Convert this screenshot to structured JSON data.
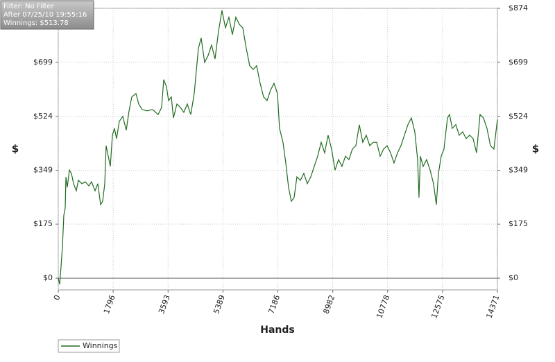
{
  "chart_data": {
    "type": "line",
    "annotations": [
      "Filter: No Filter",
      "After 07/25/10 19:55:16",
      "Winnings: $513.78"
    ],
    "xlabel": "Hands",
    "ylabel": "$",
    "x": [
      0,
      45,
      90,
      136,
      182,
      227,
      250,
      295,
      363,
      431,
      500,
      590,
      658,
      772,
      885,
      999,
      1090,
      1203,
      1294,
      1385,
      1453,
      1521,
      1566,
      1635,
      1703,
      1771,
      1839,
      1907,
      1998,
      2111,
      2225,
      2315,
      2406,
      2542,
      2633,
      2747,
      2906,
      3087,
      3269,
      3382,
      3450,
      3541,
      3609,
      3700,
      3768,
      3882,
      3995,
      4109,
      4222,
      4336,
      4449,
      4585,
      4676,
      4790,
      4903,
      5017,
      5130,
      5244,
      5357,
      5471,
      5584,
      5698,
      5811,
      5925,
      6038,
      6152,
      6265,
      6379,
      6492,
      6606,
      6719,
      6833,
      6946,
      7060,
      7173,
      7241,
      7354,
      7445,
      7536,
      7627,
      7718,
      7809,
      7922,
      8036,
      8149,
      8263,
      8376,
      8490,
      8603,
      8717,
      8830,
      8944,
      9057,
      9171,
      9284,
      9398,
      9511,
      9625,
      9738,
      9852,
      9965,
      10079,
      10192,
      10306,
      10420,
      10533,
      10647,
      10760,
      10874,
      10987,
      11101,
      11214,
      11328,
      11441,
      11555,
      11668,
      11759,
      11804,
      11850,
      11941,
      12054,
      12168,
      12281,
      12372,
      12440,
      12531,
      12622,
      12736,
      12804,
      12894,
      13008,
      13121,
      13235,
      13348,
      13462,
      13575,
      13689,
      13802,
      13916,
      14029,
      14143,
      14256,
      14371
    ],
    "series": [
      {
        "name": "Winnings",
        "color": "#1f6b1f",
        "values": [
          0,
          -20,
          36,
          103,
          204,
          227,
          328,
          294,
          350,
          339,
          306,
          283,
          317,
          306,
          312,
          299,
          312,
          283,
          306,
          238,
          249,
          306,
          429,
          395,
          362,
          463,
          485,
          452,
          508,
          524,
          479,
          541,
          587,
          598,
          564,
          546,
          542,
          546,
          530,
          553,
          643,
          620,
          575,
          587,
          519,
          564,
          553,
          537,
          564,
          530,
          598,
          744,
          778,
          699,
          721,
          755,
          710,
          800,
          867,
          811,
          845,
          789,
          845,
          822,
          811,
          744,
          688,
          676,
          688,
          631,
          587,
          575,
          609,
          631,
          598,
          485,
          440,
          373,
          294,
          249,
          261,
          328,
          317,
          339,
          306,
          328,
          362,
          395,
          440,
          406,
          463,
          418,
          350,
          384,
          362,
          395,
          384,
          418,
          429,
          497,
          440,
          463,
          429,
          440,
          440,
          395,
          418,
          429,
          406,
          373,
          406,
          429,
          463,
          497,
          519,
          474,
          384,
          261,
          395,
          362,
          384,
          350,
          306,
          238,
          339,
          395,
          418,
          519,
          530,
          485,
          497,
          463,
          474,
          452,
          463,
          452,
          406,
          530,
          519,
          485,
          429,
          418,
          513.78
        ]
      }
    ],
    "xlim": [
      0,
      14371
    ],
    "xticks": [
      0,
      1796,
      3593,
      5389,
      7186,
      8982,
      10778,
      12575,
      14371
    ],
    "ylim": [
      -38,
      874
    ],
    "yticks": [
      {
        "value": 0,
        "label": "$0"
      },
      {
        "value": 175,
        "label": "$175"
      },
      {
        "value": 349,
        "label": "$349"
      },
      {
        "value": 524,
        "label": "$524"
      },
      {
        "value": 699,
        "label": "$699"
      },
      {
        "value": 874,
        "label": "$874"
      }
    ],
    "grid": true,
    "legend": "bottom-left"
  }
}
